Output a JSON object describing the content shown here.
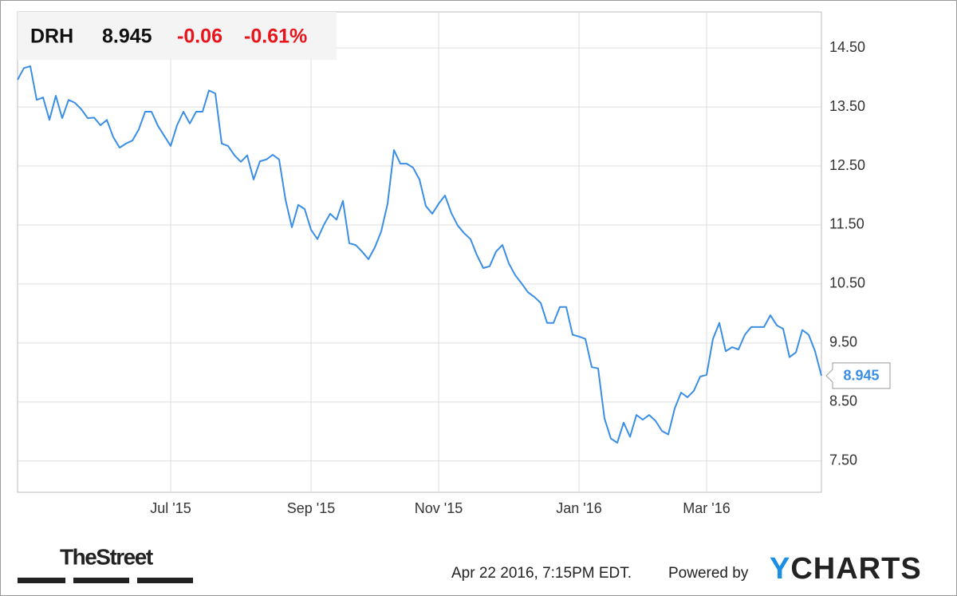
{
  "header": {
    "ticker": "DRH",
    "change": "-0.06",
    "change_percent": "-0.61%"
  },
  "chart_data": {
    "type": "line",
    "categories": [
      null,
      null,
      null,
      null,
      null,
      null,
      null,
      null,
      null,
      null,
      null,
      null,
      null,
      null,
      null,
      null,
      null,
      null,
      null,
      null,
      null,
      null,
      null,
      null,
      "Jul '15",
      null,
      null,
      null,
      null,
      null,
      null,
      null,
      null,
      null,
      null,
      null,
      null,
      null,
      null,
      null,
      null,
      null,
      null,
      null,
      null,
      null,
      "Sep '15",
      null,
      null,
      null,
      null,
      null,
      null,
      null,
      null,
      null,
      null,
      null,
      null,
      null,
      null,
      null,
      null,
      null,
      null,
      null,
      "Nov '15",
      null,
      null,
      null,
      null,
      null,
      null,
      null,
      null,
      null,
      null,
      null,
      null,
      null,
      null,
      null,
      null,
      null,
      null,
      null,
      null,
      null,
      "Jan '16",
      null,
      null,
      null,
      null,
      null,
      null,
      null,
      null,
      null,
      null,
      null,
      null,
      null,
      null,
      null,
      null,
      null,
      null,
      null,
      "Mar '16",
      null,
      null,
      null,
      null,
      null,
      null,
      null,
      null,
      null,
      null,
      null,
      null,
      null,
      null,
      null,
      null,
      null,
      null
    ],
    "series": [
      {
        "name": "DRH",
        "color": "#3a8ee6",
        "values": [
          13.96,
          14.16,
          14.19,
          13.62,
          13.66,
          13.28,
          13.69,
          13.31,
          13.62,
          13.57,
          13.46,
          13.31,
          13.32,
          13.19,
          13.28,
          12.99,
          12.81,
          12.88,
          12.93,
          13.12,
          13.42,
          13.42,
          13.18,
          13.01,
          12.84,
          13.19,
          13.42,
          13.22,
          13.42,
          13.42,
          13.78,
          13.73,
          12.88,
          12.84,
          12.68,
          12.57,
          12.68,
          12.27,
          12.58,
          12.61,
          12.69,
          12.61,
          11.93,
          11.46,
          11.84,
          11.77,
          11.42,
          11.26,
          11.5,
          11.69,
          11.59,
          11.91,
          11.19,
          11.16,
          11.05,
          10.92,
          11.12,
          11.39,
          11.86,
          12.77,
          12.54,
          12.54,
          12.47,
          12.27,
          11.82,
          11.69,
          11.86,
          12.0,
          11.7,
          11.49,
          11.36,
          11.26,
          10.99,
          10.77,
          10.8,
          11.05,
          11.16,
          10.85,
          10.65,
          10.51,
          10.36,
          10.28,
          10.18,
          9.84,
          9.84,
          10.11,
          10.11,
          9.64,
          9.61,
          9.57,
          9.09,
          9.07,
          8.22,
          7.88,
          7.81,
          8.15,
          7.91,
          8.28,
          8.2,
          8.28,
          8.18,
          8.01,
          7.95,
          8.39,
          8.66,
          8.58,
          8.69,
          8.93,
          8.96,
          9.57,
          9.84,
          9.36,
          9.43,
          9.39,
          9.64,
          9.77,
          9.77,
          9.77,
          9.97,
          9.8,
          9.74,
          9.26,
          9.34,
          9.72,
          9.64,
          9.36,
          8.945
        ]
      }
    ],
    "ylim": [
      6.97,
      15.11
    ],
    "yticks": [
      {
        "value": 7.5,
        "label": "7.50"
      },
      {
        "value": 8.5,
        "label": "8.50"
      },
      {
        "value": 9.5,
        "label": "9.50"
      },
      {
        "value": 10.5,
        "label": "10.50"
      },
      {
        "value": 11.5,
        "label": "11.50"
      },
      {
        "value": 12.5,
        "label": "12.50"
      },
      {
        "value": 13.5,
        "label": "13.50"
      },
      {
        "value": 14.5,
        "label": "14.50"
      }
    ],
    "grid": true
  },
  "footer": {
    "brand": "TheStreet",
    "timestamp": "Apr 22 2016, 7:15PM EDT.",
    "powered_by": "Powered by",
    "provider": "YCHARTS"
  }
}
